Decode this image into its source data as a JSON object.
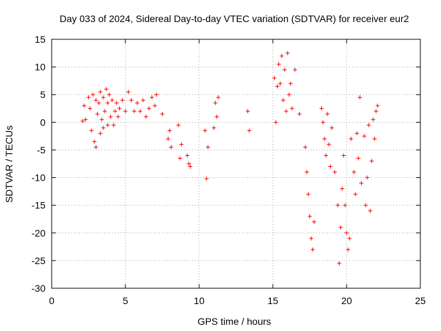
{
  "chart_data": {
    "type": "scatter",
    "title": "Day 033 of 2024, Sidereal Day-to-day VTEC variation (SDTVAR) for receiver eur2",
    "xlabel": "GPS time / hours",
    "ylabel": "SDTVAR / TECUs",
    "xlim": [
      0,
      25
    ],
    "ylim": [
      -30,
      15
    ],
    "xticks": [
      "0",
      "5",
      "10",
      "15",
      "20",
      "25"
    ],
    "xtick_values": [
      0,
      5,
      10,
      15,
      20,
      25
    ],
    "yticks": [
      "15",
      "10",
      "5",
      "0",
      "-5",
      "-10",
      "-15",
      "-20",
      "-25",
      "-30"
    ],
    "ytick_values": [
      15,
      10,
      5,
      0,
      -5,
      -10,
      -15,
      -20,
      -25,
      -30
    ],
    "grid": true,
    "marker": "+",
    "color": "#ff0000",
    "series": [
      {
        "name": "SDTVAR",
        "x": [
          2.1,
          2.2,
          2.3,
          2.5,
          2.6,
          2.7,
          2.8,
          2.9,
          3.0,
          3.0,
          3.1,
          3.2,
          3.3,
          3.3,
          3.4,
          3.5,
          3.5,
          3.6,
          3.7,
          3.8,
          3.8,
          3.9,
          4.0,
          4.1,
          4.2,
          4.3,
          4.4,
          4.5,
          4.6,
          4.8,
          5.0,
          5.2,
          5.4,
          5.6,
          5.8,
          6.0,
          6.2,
          6.4,
          6.6,
          6.8,
          7.0,
          7.1,
          7.5,
          7.9,
          8.0,
          8.1,
          8.6,
          8.7,
          8.8,
          9.2,
          9.3,
          9.4,
          10.4,
          10.5,
          10.6,
          11.0,
          11.1,
          11.2,
          11.3,
          13.3,
          13.4,
          15.1,
          15.2,
          15.3,
          15.4,
          15.5,
          15.6,
          15.7,
          15.8,
          15.9,
          16.0,
          16.1,
          16.2,
          16.3,
          16.5,
          16.8,
          17.2,
          17.3,
          17.4,
          17.5,
          17.6,
          17.7,
          17.8,
          18.3,
          18.4,
          18.5,
          18.6,
          18.7,
          18.8,
          18.9,
          19.0,
          19.2,
          19.4,
          19.5,
          19.6,
          19.7,
          19.8,
          19.9,
          20.0,
          20.1,
          20.2,
          20.3,
          20.5,
          20.6,
          20.7,
          20.8,
          20.9,
          21.0,
          21.2,
          21.3,
          21.4,
          21.5,
          21.6,
          21.7,
          21.8,
          21.9,
          22.0,
          22.1
        ],
        "y": [
          0.2,
          3.0,
          0.5,
          4.5,
          2.5,
          -1.5,
          5.0,
          -3.5,
          4.0,
          -4.5,
          1.5,
          3.5,
          -2.0,
          5.5,
          0.5,
          4.5,
          -1.0,
          2.0,
          6.0,
          -0.5,
          3.5,
          5.0,
          1.0,
          4.0,
          -0.5,
          2.0,
          3.5,
          1.0,
          2.5,
          4.0,
          2.0,
          5.5,
          4.0,
          2.0,
          3.5,
          2.0,
          4.0,
          1.0,
          2.5,
          4.5,
          3.0,
          5.0,
          1.5,
          -3.0,
          -1.5,
          -4.5,
          -0.5,
          -6.5,
          -4.0,
          -6.0,
          -7.5,
          -8.0,
          -1.5,
          -10.2,
          -4.5,
          -1.0,
          3.5,
          1.0,
          4.5,
          2.0,
          -1.5,
          8.0,
          0.0,
          6.5,
          10.5,
          7.0,
          12.0,
          4.0,
          9.5,
          2.0,
          12.5,
          5.0,
          7.0,
          2.5,
          9.5,
          1.5,
          -4.5,
          -9.0,
          -13.0,
          -17.0,
          -21.0,
          -23.0,
          -18.0,
          2.5,
          0.0,
          -3.0,
          -6.0,
          1.5,
          -4.0,
          -8.0,
          -1.0,
          -9.0,
          -15.0,
          -25.5,
          -19.0,
          -12.0,
          -6.0,
          -15.0,
          -20.0,
          -23.0,
          -21.0,
          -3.0,
          -9.0,
          -13.0,
          -2.0,
          -6.5,
          4.5,
          -11.0,
          -2.5,
          -15.0,
          -10.0,
          -0.5,
          -16.0,
          -7.0,
          0.5,
          -3.0,
          2.0,
          3.0
        ]
      }
    ]
  }
}
